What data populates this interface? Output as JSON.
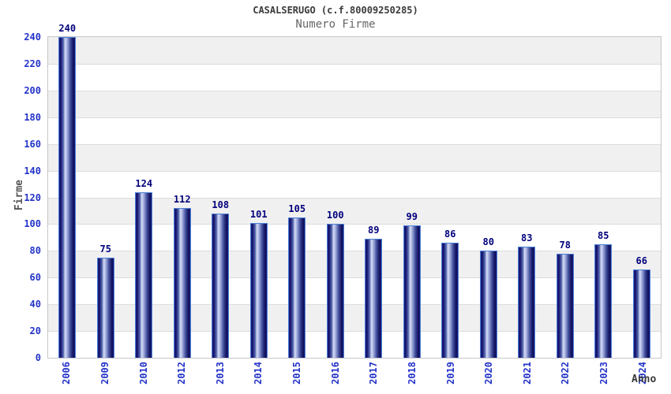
{
  "chart_data": {
    "type": "bar",
    "title": "CASALSERUGO (c.f.80009250285)",
    "subtitle": "Numero Firme",
    "xlabel": "Anno",
    "ylabel": "Firme",
    "categories": [
      "2006",
      "2009",
      "2010",
      "2012",
      "2013",
      "2014",
      "2015",
      "2016",
      "2017",
      "2018",
      "2019",
      "2020",
      "2021",
      "2022",
      "2023",
      "2024"
    ],
    "values": [
      240,
      75,
      124,
      112,
      108,
      101,
      105,
      100,
      89,
      99,
      86,
      80,
      83,
      78,
      85,
      66
    ],
    "ylim": [
      0,
      240
    ],
    "ytick_step": 20,
    "legend_position": "none",
    "grid": "horizontal gridlines every 20 with alternating gray/white bands",
    "bar_labels_shown": true,
    "colors": {
      "bar_dark": "#12126a",
      "bar_light": "#d8def4",
      "bar_border": "#4a7fd4",
      "axis_tick_text": "#2433c8",
      "value_label_text": "#00007d",
      "band_gray": "#f0f0f0",
      "band_white": "#ffffff",
      "gridline": "#dcdcdc",
      "plot_border": "#c6c6c6",
      "title_text": "#3a3a3a",
      "subtitle_text": "#666666",
      "axis_title_text": "#555555"
    }
  }
}
